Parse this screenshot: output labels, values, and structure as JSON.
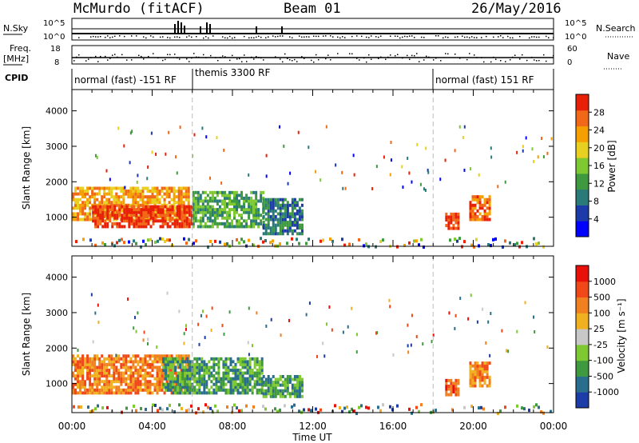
{
  "header": {
    "title": "McMurdo (fitACF)",
    "beam": "Beam 01",
    "date": "26/May/2016"
  },
  "strip_labels": {
    "nsky": "N.Sky",
    "nsky_top": "10^5",
    "nsky_bot": "10^0",
    "freq_a": "Freq.",
    "freq_b": "[MHz]",
    "freq_top": "18",
    "freq_bot": "8",
    "cpid": "CPID",
    "nsearch": "N.Search",
    "nsearch_top": "10^5",
    "nsearch_bot": "10^0",
    "nave": "Nave",
    "nave_top": "60",
    "nave_bot": "0"
  },
  "modes": [
    {
      "label": "normal (fast) -151 RF",
      "start": 0,
      "end": 6
    },
    {
      "label": "themis 3300 RF",
      "start": 6,
      "end": 18
    },
    {
      "label": "normal (fast) 151 RF",
      "start": 18,
      "end": 24
    }
  ],
  "chart_data": [
    {
      "type": "heatmap",
      "quantity": "Power",
      "ylabel": "Slant Range [km]",
      "xlabel": "Time UT",
      "xlim_hours": [
        0,
        24
      ],
      "ylim": [
        180,
        4600
      ],
      "xticks": [
        "00:00",
        "04:00",
        "08:00",
        "12:00",
        "16:00",
        "20:00",
        "00:00"
      ],
      "yticks": [
        1000,
        2000,
        3000,
        4000
      ],
      "colorbar": {
        "label": "Power [dB]",
        "ticks": [
          "4",
          "8",
          "12",
          "16",
          "20",
          "24",
          "28"
        ],
        "colors": [
          "#0000ff",
          "#1c3aa8",
          "#2a7a7a",
          "#3f9a3f",
          "#7ec832",
          "#e8d020",
          "#f5a000",
          "#f06818",
          "#e82008"
        ]
      },
      "regions": [
        {
          "t0": 0.0,
          "t1": 5.8,
          "r0": 900,
          "r1": 1800,
          "level": 6
        },
        {
          "t0": 1.0,
          "t1": 6.0,
          "r0": 700,
          "r1": 1300,
          "level": 8
        },
        {
          "t0": 6.0,
          "t1": 9.5,
          "r0": 700,
          "r1": 1700,
          "level": 3
        },
        {
          "t0": 9.5,
          "t1": 11.5,
          "r0": 500,
          "r1": 1500,
          "level": 2
        },
        {
          "t0": 18.6,
          "t1": 19.3,
          "r0": 650,
          "r1": 1100,
          "level": 8
        },
        {
          "t0": 19.8,
          "t1": 20.8,
          "r0": 900,
          "r1": 1600,
          "level": 7
        }
      ]
    },
    {
      "type": "heatmap",
      "quantity": "Velocity",
      "ylabel": "Slant Range [km]",
      "xlabel": "Time UT",
      "xlim_hours": [
        0,
        24
      ],
      "ylim": [
        180,
        4600
      ],
      "xticks": [
        "00:00",
        "04:00",
        "08:00",
        "12:00",
        "16:00",
        "20:00",
        "00:00"
      ],
      "yticks": [
        1000,
        2000,
        3000,
        4000
      ],
      "colorbar": {
        "label": "Velocity [m s⁻¹]",
        "ticks": [
          "1000",
          "500",
          "100",
          "25",
          "-25",
          "-100",
          "-500",
          "-1000"
        ],
        "colors": [
          "#1c3ca8",
          "#2a6e8e",
          "#3f9a3f",
          "#7ec832",
          "#c8c8c8",
          "#f0b020",
          "#f08020",
          "#f04818",
          "#e81008"
        ]
      },
      "regions": [
        {
          "t0": 0.0,
          "t1": 5.8,
          "r0": 700,
          "r1": 1800,
          "level": 6
        },
        {
          "t0": 4.5,
          "t1": 9.5,
          "r0": 700,
          "r1": 1700,
          "level": 2
        },
        {
          "t0": 9.5,
          "t1": 11.5,
          "r0": 600,
          "r1": 1200,
          "level": 2
        },
        {
          "t0": 18.6,
          "t1": 19.3,
          "r0": 650,
          "r1": 1100,
          "level": 7
        },
        {
          "t0": 19.8,
          "t1": 20.8,
          "r0": 900,
          "r1": 1600,
          "level": 6
        }
      ]
    }
  ]
}
